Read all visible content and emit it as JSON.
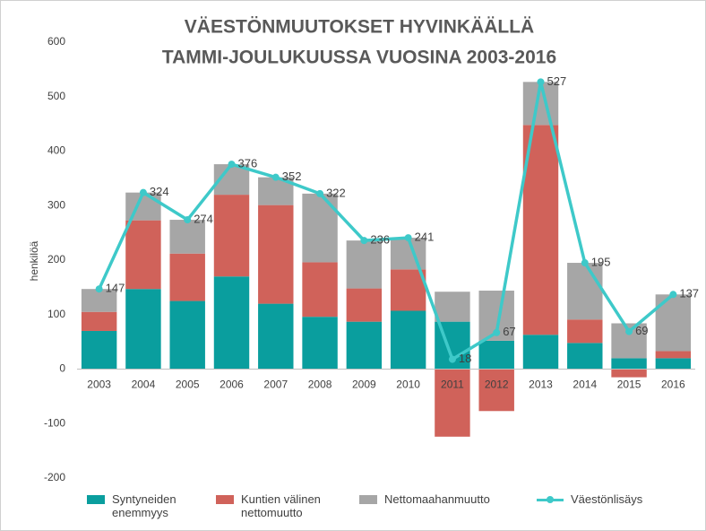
{
  "chart_data": {
    "type": "bar",
    "stacked": true,
    "title": [
      "VÄESTÖNMUUTOKSET HYVINKÄÄLLÄ",
      "TAMMI-JOULUKUUSSA VUOSINA 2003-2016"
    ],
    "y_label": "henkilöä",
    "categories": [
      "2003",
      "2004",
      "2005",
      "2006",
      "2007",
      "2008",
      "2009",
      "2010",
      "2011",
      "2012",
      "2013",
      "2014",
      "2015",
      "2016"
    ],
    "series": [
      {
        "name": "Syntyneiden enemmyys",
        "color": "#0a9e9e",
        "values": [
          70,
          147,
          125,
          170,
          120,
          96,
          87,
          107,
          87,
          52,
          63,
          48,
          20,
          20
        ]
      },
      {
        "name": "Kuntien välinen nettomuutto",
        "color": "#d0625a",
        "values": [
          35,
          126,
          87,
          150,
          181,
          100,
          61,
          76,
          -124,
          -77,
          385,
          43,
          -15,
          13
        ]
      },
      {
        "name": "Nettomaahanmuutto",
        "color": "#a6a6a6",
        "values": [
          42,
          51,
          62,
          56,
          51,
          126,
          88,
          58,
          55,
          92,
          79,
          104,
          64,
          104
        ]
      },
      {
        "name": "Väestönlisäys",
        "color": "#3ec9c9",
        "type": "line",
        "values": [
          147,
          324,
          274,
          376,
          352,
          322,
          236,
          241,
          18,
          67,
          527,
          195,
          69,
          137
        ]
      }
    ],
    "ylim": [
      -200,
      600
    ],
    "yticks": [
      -200,
      -100,
      0,
      100,
      200,
      300,
      400,
      500,
      600
    ],
    "grid": false
  }
}
